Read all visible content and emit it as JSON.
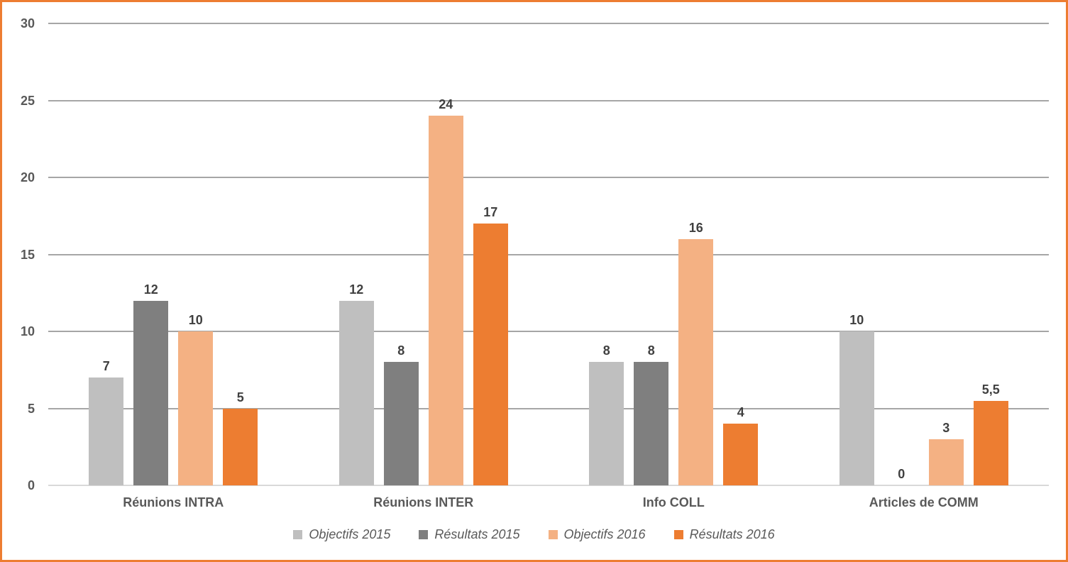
{
  "chart_data": {
    "type": "bar",
    "title": "",
    "xlabel": "",
    "ylabel": "",
    "categories": [
      "Réunions INTRA",
      "Réunions INTER",
      "Info COLL",
      "Articles de COMM"
    ],
    "series": [
      {
        "name": "Objectifs 2015",
        "color": "#BFBFBF",
        "values": [
          7,
          12,
          8,
          10
        ],
        "labels": [
          "7",
          "12",
          "8",
          "10"
        ]
      },
      {
        "name": "Résultats 2015",
        "color": "#7F7F7F",
        "values": [
          12,
          8,
          8,
          0
        ],
        "labels": [
          "12",
          "8",
          "8",
          "0"
        ]
      },
      {
        "name": "Objectifs 2016",
        "color": "#F4B183",
        "values": [
          10,
          24,
          16,
          3
        ],
        "labels": [
          "10",
          "24",
          "16",
          "3"
        ]
      },
      {
        "name": "Résultats 2016",
        "color": "#ED7D31",
        "values": [
          5,
          17,
          4,
          5.5
        ],
        "labels": [
          "5",
          "17",
          "4",
          "5,5"
        ]
      }
    ],
    "ylim": [
      0,
      30
    ],
    "ytick_step": 5,
    "yticks": [
      "0",
      "5",
      "10",
      "15",
      "20",
      "25",
      "30"
    ],
    "grid": true,
    "legend_position": "bottom"
  },
  "style": {
    "frame_border_color": "#ED7D31",
    "gridline_color": "#A6A6A6",
    "baseline_color": "#D9D9D9",
    "axis_text_color": "#595959",
    "data_label_color": "#404040"
  }
}
